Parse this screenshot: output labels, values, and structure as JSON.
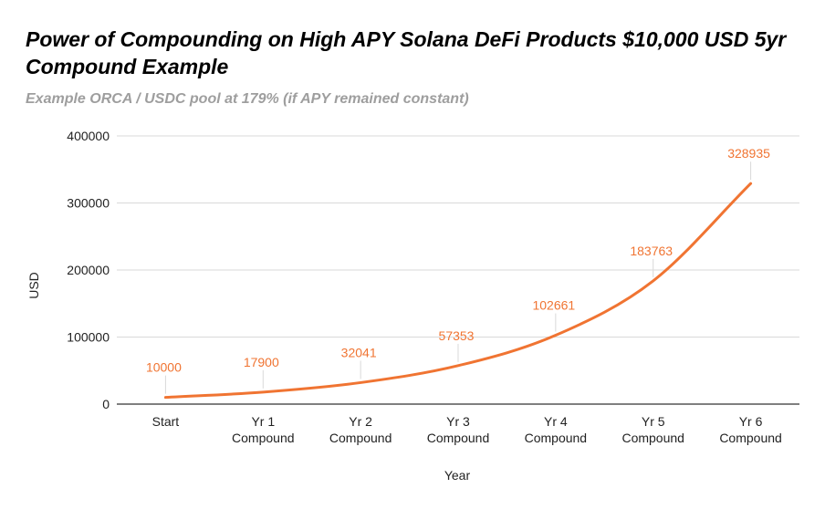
{
  "chart_data": {
    "type": "line",
    "title": "Power of Compounding on High APY Solana DeFi Products $10,000 USD 5yr Compound Example",
    "subtitle": "Example ORCA / USDC pool at 179%  (if APY remained constant)",
    "xlabel": "Year",
    "ylabel": "USD",
    "categories": [
      [
        "Start"
      ],
      [
        "Yr 1",
        "Compound"
      ],
      [
        "Yr 2",
        "Compound"
      ],
      [
        "Yr 3",
        "Compound"
      ],
      [
        "Yr 4",
        "Compound"
      ],
      [
        "Yr 5",
        "Compound"
      ],
      [
        "Yr 6",
        "Compound"
      ]
    ],
    "series": [
      {
        "values": [
          10000,
          17900,
          32041,
          57353,
          102661,
          183763,
          328935
        ]
      }
    ],
    "data_labels": [
      "10000",
      "17900",
      "32041",
      "57353",
      "102661",
      "183763",
      "328935"
    ],
    "ylim": [
      0,
      400000
    ],
    "yticks": [
      0,
      100000,
      200000,
      300000,
      400000
    ],
    "ytick_labels": [
      "0",
      "100000",
      "200000",
      "300000",
      "400000"
    ],
    "grid": true,
    "legend": "none",
    "colors": {
      "line": "#f07432",
      "data_label": "#f07432",
      "grid": "#d9d9d9",
      "axis": "#333333",
      "text": "#222222",
      "subtitle": "#9e9e9e"
    }
  }
}
